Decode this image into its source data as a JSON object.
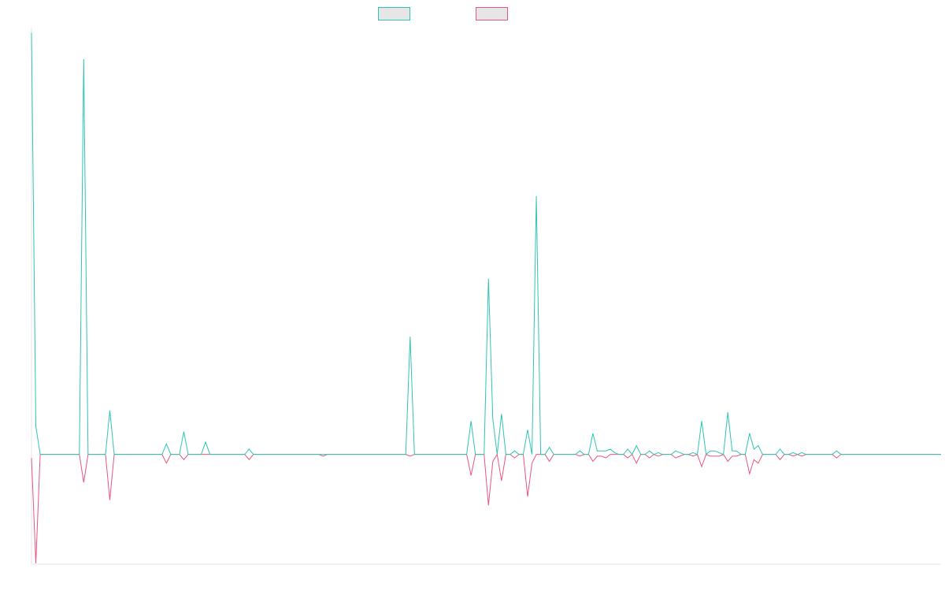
{
  "chart_data": {
    "type": "line",
    "title": "",
    "xlabel": "",
    "ylabel": "",
    "legend_position": "top-center",
    "grid": false,
    "x_count": 210,
    "ylim": [
      -62.5,
      242.5
    ],
    "zero_level": 0,
    "colors": {
      "series_a": "#2ec4b6",
      "series_b": "#e8567f",
      "legend_fill": "#e6e6e6",
      "axis": "#e6e6e6"
    },
    "series": [
      {
        "key": "a",
        "name": "",
        "color": "#2ec4b6",
        "points": [
          [
            0,
            240
          ],
          [
            1,
            16
          ],
          [
            2,
            0
          ],
          [
            11,
            0
          ],
          [
            12,
            225
          ],
          [
            13,
            0
          ],
          [
            17,
            0
          ],
          [
            18,
            25
          ],
          [
            19,
            0
          ],
          [
            30,
            0
          ],
          [
            31,
            6
          ],
          [
            32,
            0
          ],
          [
            34,
            0
          ],
          [
            35,
            13
          ],
          [
            36,
            0
          ],
          [
            39,
            0
          ],
          [
            40,
            7
          ],
          [
            41,
            0
          ],
          [
            49,
            0
          ],
          [
            50,
            3
          ],
          [
            51,
            0
          ],
          [
            66,
            0
          ],
          [
            67,
            0
          ],
          [
            68,
            0
          ],
          [
            86,
            0
          ],
          [
            87,
            67
          ],
          [
            88,
            0
          ],
          [
            100,
            0
          ],
          [
            101,
            19
          ],
          [
            102,
            0
          ],
          [
            104,
            0
          ],
          [
            105,
            100
          ],
          [
            106,
            20
          ],
          [
            107,
            0
          ],
          [
            108,
            23
          ],
          [
            109,
            0
          ],
          [
            110,
            0
          ],
          [
            111,
            2
          ],
          [
            112,
            0
          ],
          [
            113,
            0
          ],
          [
            114,
            14
          ],
          [
            115,
            0
          ],
          [
            116,
            147
          ],
          [
            117,
            0
          ],
          [
            118,
            0
          ],
          [
            119,
            4
          ],
          [
            120,
            0
          ],
          [
            125,
            0
          ],
          [
            126,
            2
          ],
          [
            127,
            0
          ],
          [
            128,
            0
          ],
          [
            129,
            12
          ],
          [
            130,
            2
          ],
          [
            131,
            2
          ],
          [
            132,
            2
          ],
          [
            133,
            3
          ],
          [
            134,
            1
          ],
          [
            135,
            0
          ],
          [
            136,
            0
          ],
          [
            137,
            3
          ],
          [
            138,
            0
          ],
          [
            139,
            5
          ],
          [
            140,
            0
          ],
          [
            141,
            0
          ],
          [
            142,
            2
          ],
          [
            143,
            0
          ],
          [
            144,
            1
          ],
          [
            145,
            0
          ],
          [
            147,
            0
          ],
          [
            148,
            2
          ],
          [
            149,
            1
          ],
          [
            150,
            0
          ],
          [
            151,
            0
          ],
          [
            152,
            1
          ],
          [
            153,
            0
          ],
          [
            154,
            19
          ],
          [
            155,
            0
          ],
          [
            156,
            2
          ],
          [
            157,
            2
          ],
          [
            158,
            1
          ],
          [
            159,
            0
          ],
          [
            160,
            24
          ],
          [
            161,
            2
          ],
          [
            162,
            2
          ],
          [
            163,
            0
          ],
          [
            164,
            0
          ],
          [
            165,
            12
          ],
          [
            166,
            3
          ],
          [
            167,
            5
          ],
          [
            168,
            0
          ],
          [
            171,
            0
          ],
          [
            172,
            3
          ],
          [
            173,
            0
          ],
          [
            174,
            0
          ],
          [
            175,
            1
          ],
          [
            176,
            0
          ],
          [
            177,
            1
          ],
          [
            178,
            0
          ],
          [
            184,
            0
          ],
          [
            185,
            2
          ],
          [
            186,
            0
          ],
          [
            209,
            0
          ]
        ]
      },
      {
        "key": "b",
        "name": "",
        "color": "#e8567f",
        "points": [
          [
            0,
            -2
          ],
          [
            1,
            -62
          ],
          [
            2,
            0
          ],
          [
            11,
            0
          ],
          [
            12,
            -16
          ],
          [
            13,
            0
          ],
          [
            17,
            0
          ],
          [
            18,
            -26
          ],
          [
            19,
            0
          ],
          [
            30,
            0
          ],
          [
            31,
            -5
          ],
          [
            32,
            0
          ],
          [
            34,
            0
          ],
          [
            35,
            -3
          ],
          [
            36,
            0
          ],
          [
            49,
            0
          ],
          [
            50,
            -3
          ],
          [
            51,
            0
          ],
          [
            66,
            0
          ],
          [
            67,
            -1
          ],
          [
            68,
            0
          ],
          [
            86,
            0
          ],
          [
            87,
            -1
          ],
          [
            88,
            0
          ],
          [
            100,
            0
          ],
          [
            101,
            -12
          ],
          [
            102,
            0
          ],
          [
            104,
            0
          ],
          [
            105,
            -29
          ],
          [
            106,
            -4
          ],
          [
            107,
            0
          ],
          [
            108,
            -15
          ],
          [
            109,
            0
          ],
          [
            110,
            0
          ],
          [
            111,
            -2
          ],
          [
            112,
            0
          ],
          [
            113,
            0
          ],
          [
            114,
            -24
          ],
          [
            115,
            -5
          ],
          [
            116,
            0
          ],
          [
            118,
            0
          ],
          [
            119,
            -4
          ],
          [
            120,
            0
          ],
          [
            125,
            0
          ],
          [
            126,
            -1
          ],
          [
            127,
            0
          ],
          [
            128,
            0
          ],
          [
            129,
            -4
          ],
          [
            130,
            -1
          ],
          [
            131,
            -1
          ],
          [
            132,
            -2
          ],
          [
            133,
            0
          ],
          [
            136,
            0
          ],
          [
            137,
            -2
          ],
          [
            138,
            0
          ],
          [
            139,
            -5
          ],
          [
            140,
            0
          ],
          [
            141,
            0
          ],
          [
            142,
            -2
          ],
          [
            143,
            0
          ],
          [
            144,
            -1
          ],
          [
            145,
            0
          ],
          [
            147,
            0
          ],
          [
            148,
            -2
          ],
          [
            149,
            -1
          ],
          [
            150,
            0
          ],
          [
            151,
            0
          ],
          [
            152,
            -1
          ],
          [
            153,
            0
          ],
          [
            154,
            -7
          ],
          [
            155,
            0
          ],
          [
            156,
            -1
          ],
          [
            157,
            -1
          ],
          [
            158,
            -1
          ],
          [
            159,
            0
          ],
          [
            160,
            -4
          ],
          [
            161,
            -1
          ],
          [
            162,
            -1
          ],
          [
            163,
            0
          ],
          [
            164,
            0
          ],
          [
            165,
            -11
          ],
          [
            166,
            -3
          ],
          [
            167,
            -5
          ],
          [
            168,
            0
          ],
          [
            171,
            0
          ],
          [
            172,
            -3
          ],
          [
            173,
            0
          ],
          [
            174,
            0
          ],
          [
            175,
            -1
          ],
          [
            176,
            0
          ],
          [
            177,
            -1
          ],
          [
            178,
            0
          ],
          [
            184,
            0
          ],
          [
            185,
            -2
          ],
          [
            186,
            0
          ],
          [
            209,
            0
          ]
        ]
      }
    ]
  }
}
